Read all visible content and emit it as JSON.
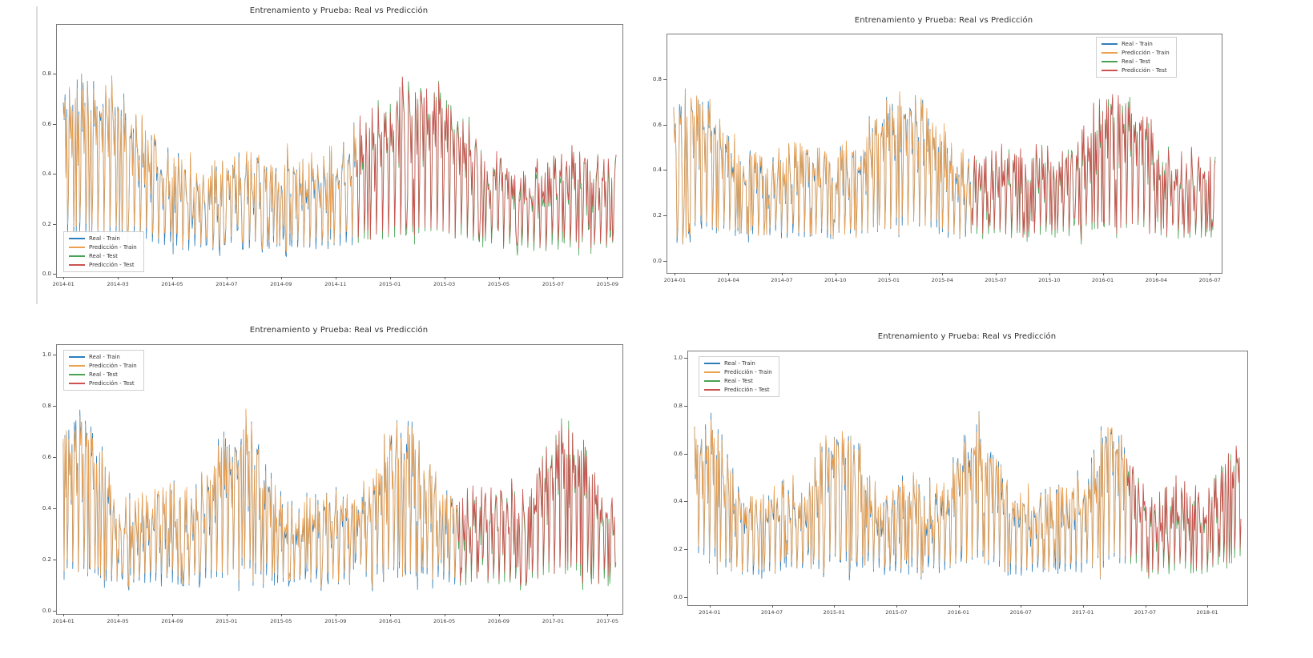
{
  "page": {
    "background": "#ffffff",
    "left_divider_color": "#dcdcdc"
  },
  "chart_data": [
    {
      "id": "top-left",
      "type": "line",
      "title": "Entrenamiento y Prueba: Real vs Predicción",
      "xlabel": "",
      "ylabel": "",
      "x_ticks": [
        "2014-01",
        "2014-03",
        "2014-05",
        "2014-07",
        "2014-09",
        "2014-11",
        "2015-01",
        "2015-03",
        "2015-05",
        "2015-07",
        "2015-09"
      ],
      "y_ticks": [
        0.8,
        0.6,
        0.4,
        0.2,
        0.0
      ],
      "ylim": [
        -0.01,
        1.0
      ],
      "x_range": [
        "2014-01",
        "2015-09"
      ],
      "grid": false,
      "legend_position": "lower-left",
      "series": [
        {
          "name": "Real - Train",
          "color": "#2e7ebc"
        },
        {
          "name": "Predicción - Train",
          "color": "#eda04f"
        },
        {
          "name": "Real - Test",
          "color": "#49a355"
        },
        {
          "name": "Predicción - Test",
          "color": "#cc5250"
        }
      ],
      "pattern": {
        "seed": 11,
        "n_points": 640,
        "train_frac": 0.53,
        "years": 1.7,
        "base": 0.5,
        "season_amp": 0.17,
        "noise_amp": 0.2,
        "pred_tightness": 0.94,
        "value_range": [
          0.03,
          0.93
        ]
      },
      "description": "Dense daily series oscillating between ~0.05 and ~0.93; predicted line closely overlaps real; test period begins around 2014-12."
    },
    {
      "id": "top-right",
      "type": "line",
      "title": "Entrenamiento y Prueba: Real vs Predicción",
      "xlabel": "",
      "ylabel": "",
      "x_ticks": [
        "2014-01",
        "2014-04",
        "2014-07",
        "2014-10",
        "2015-01",
        "2015-04",
        "2015-07",
        "2015-10",
        "2016-01",
        "2016-04",
        "2016-07"
      ],
      "y_ticks": [
        0.8,
        0.6,
        0.4,
        0.2,
        0.0
      ],
      "ylim": [
        -0.05,
        1.0
      ],
      "x_range": [
        "2014-01",
        "2016-07"
      ],
      "grid": false,
      "legend_position": "upper-right",
      "series": [
        {
          "name": "Real - Train",
          "color": "#2e7ebc"
        },
        {
          "name": "Predicción - Train",
          "color": "#eda04f"
        },
        {
          "name": "Real - Test",
          "color": "#49a355"
        },
        {
          "name": "Predicción - Test",
          "color": "#cc5250"
        }
      ],
      "pattern": {
        "seed": 22,
        "n_points": 660,
        "train_frac": 0.55,
        "years": 2.55,
        "base": 0.5,
        "season_amp": 0.14,
        "noise_amp": 0.2,
        "pred_tightness": 0.96,
        "value_range": [
          0.03,
          0.92
        ]
      },
      "description": "Dense daily series oscillating between ~0.05 and ~0.92; real and predicted overlap almost completely giving a brownish tone; test period begins around 2015-06."
    },
    {
      "id": "bottom-left",
      "type": "line",
      "title": "Entrenamiento y Prueba: Real vs Predicción",
      "xlabel": "",
      "ylabel": "",
      "x_ticks": [
        "2014-01",
        "2014-05",
        "2014-09",
        "2015-01",
        "2015-05",
        "2015-09",
        "2016-01",
        "2016-05",
        "2016-09",
        "2017-01",
        "2017-05"
      ],
      "y_ticks": [
        1.0,
        0.8,
        0.6,
        0.4,
        0.2,
        0.0
      ],
      "ylim": [
        -0.01,
        1.04
      ],
      "x_range": [
        "2014-01",
        "2017-05"
      ],
      "grid": false,
      "legend_position": "upper-left",
      "series": [
        {
          "name": "Real - Train",
          "color": "#2e7ebc"
        },
        {
          "name": "Predicción - Train",
          "color": "#eda04f"
        },
        {
          "name": "Real - Test",
          "color": "#49a355"
        },
        {
          "name": "Predicción - Test",
          "color": "#cc5250"
        }
      ],
      "pattern": {
        "seed": 33,
        "n_points": 700,
        "train_frac": 0.71,
        "years": 3.4,
        "base": 0.48,
        "season_amp": 0.15,
        "noise_amp": 0.22,
        "pred_tightness": 0.94,
        "value_range": [
          0.02,
          0.99
        ]
      },
      "description": "Dense daily series oscillating between ~0.02 and ~1.0; orange prediction dominates the train span, red dominates the test span starting around 2016-07."
    },
    {
      "id": "bottom-right",
      "type": "line",
      "title": "Entrenamiento y Prueba: Real vs Predicción",
      "xlabel": "",
      "ylabel": "",
      "x_ticks": [
        "2014-01",
        "2014-07",
        "2015-01",
        "2015-07",
        "2016-01",
        "2016-07",
        "2017-01",
        "2017-07",
        "2018-01"
      ],
      "y_ticks": [
        1.0,
        0.8,
        0.6,
        0.4,
        0.2,
        0.0
      ],
      "ylim": [
        -0.03,
        1.03
      ],
      "x_range": [
        "2014-01",
        "2018-03"
      ],
      "grid": false,
      "legend_position": "upper-left",
      "series": [
        {
          "name": "Real - Train",
          "color": "#2e7ebc"
        },
        {
          "name": "Predicción - Train",
          "color": "#eda04f"
        },
        {
          "name": "Real - Test",
          "color": "#49a355"
        },
        {
          "name": "Predicción - Test",
          "color": "#cc5250"
        }
      ],
      "pattern": {
        "seed": 44,
        "n_points": 700,
        "train_frac": 0.79,
        "years": 4.05,
        "base": 0.48,
        "season_amp": 0.15,
        "noise_amp": 0.22,
        "pred_tightness": 0.94,
        "value_range": [
          0.02,
          0.99
        ]
      },
      "description": "Dense daily series oscillating between ~0.02 and ~1.0; test period (green/red) begins around 2017-03 with green peaks visible near the end."
    }
  ]
}
